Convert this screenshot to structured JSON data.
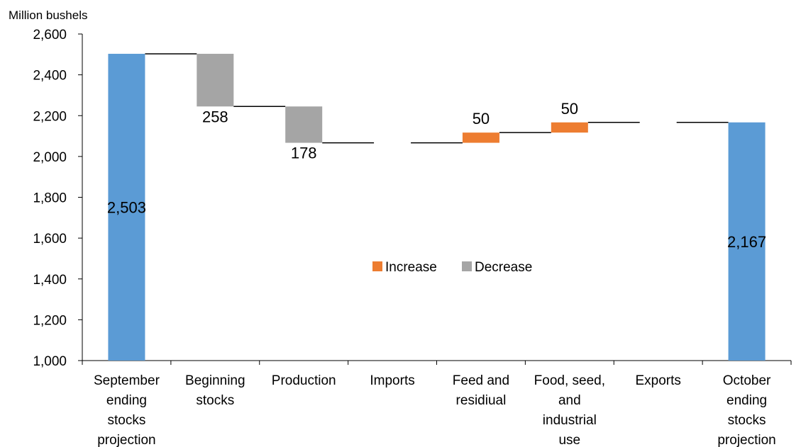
{
  "chart_data": {
    "type": "bar",
    "subtype": "waterfall",
    "ylabel": "Million bushels",
    "ylim": [
      1000,
      2600
    ],
    "yticks": [
      1000,
      1200,
      1400,
      1600,
      1800,
      2000,
      2200,
      2400,
      2600
    ],
    "ytick_labels": [
      "1,000",
      "1,200",
      "1,400",
      "1,600",
      "1,800",
      "2,000",
      "2,200",
      "2,400",
      "2,600"
    ],
    "categories": [
      [
        "September",
        "ending",
        "stocks",
        "projection"
      ],
      [
        "Beginning",
        "stocks"
      ],
      [
        "Production"
      ],
      [
        "Imports"
      ],
      [
        "Feed and",
        "residiual"
      ],
      [
        "Food, seed,",
        "and",
        "industrial",
        "use"
      ],
      [
        "Exports"
      ],
      [
        "October",
        "ending",
        "stocks",
        "projection"
      ]
    ],
    "bars": [
      {
        "kind": "total",
        "start": 1000,
        "end": 2503,
        "label": "2,503"
      },
      {
        "kind": "decrease",
        "start": 2503,
        "end": 2245,
        "label": "258"
      },
      {
        "kind": "decrease",
        "start": 2245,
        "end": 2067,
        "label": "178"
      },
      {
        "kind": "none",
        "start": 2067,
        "end": 2067,
        "label": ""
      },
      {
        "kind": "increase",
        "start": 2067,
        "end": 2117,
        "label": "50"
      },
      {
        "kind": "increase",
        "start": 2117,
        "end": 2167,
        "label": "50"
      },
      {
        "kind": "none",
        "start": 2167,
        "end": 2167,
        "label": ""
      },
      {
        "kind": "total",
        "start": 1000,
        "end": 2167,
        "label": "2,167"
      }
    ],
    "legend": [
      {
        "name": "Increase",
        "color": "#ED7D31"
      },
      {
        "name": "Decrease",
        "color": "#A5A5A5"
      }
    ],
    "legend_position": "center",
    "colors": {
      "total": "#5B9BD5",
      "increase": "#ED7D31",
      "decrease": "#A5A5A5",
      "connector": "#000000",
      "axis": "#000000"
    },
    "grid": false
  }
}
